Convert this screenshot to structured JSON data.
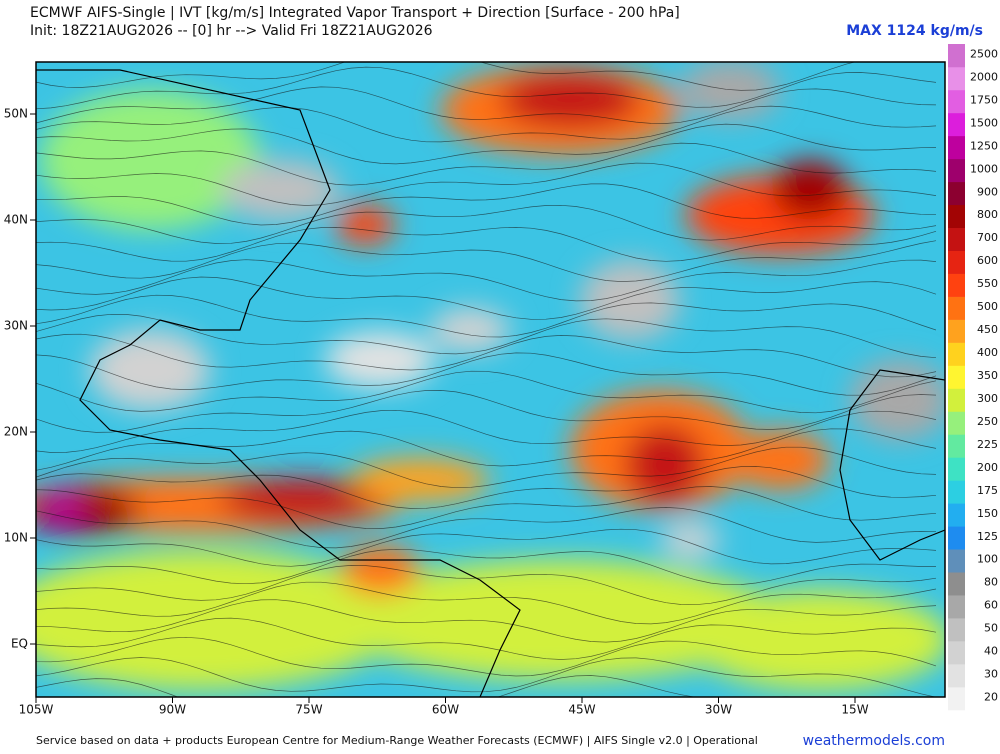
{
  "header": {
    "title": "ECMWF AIFS-Single | IVT [kg/m/s] Integrated Vapor Transport + Direction [Surface - 200 hPa]",
    "subtitle": "Init: 18Z21AUG2026 -- [0] hr --> Valid Fri 18Z21AUG2026",
    "max_label": "MAX 1124 kg/m/s"
  },
  "map": {
    "lat_labels": [
      "50N",
      "40N",
      "30N",
      "20N",
      "10N",
      "EQ"
    ],
    "lon_labels": [
      "105W",
      "90W",
      "75W",
      "60W",
      "45W",
      "30W",
      "15W"
    ]
  },
  "colorbar": {
    "levels": [
      20,
      30,
      40,
      50,
      60,
      80,
      100,
      125,
      150,
      175,
      200,
      225,
      250,
      300,
      350,
      400,
      450,
      500,
      550,
      600,
      700,
      800,
      900,
      1000,
      1250,
      1500,
      1750,
      2000,
      2500
    ],
    "colors": [
      "#f2f2f2",
      "#e2e2e2",
      "#d2d2d2",
      "#c0c0c0",
      "#a8a8a8",
      "#8e8e8e",
      "#5f8fba",
      "#1e8cf0",
      "#22aef0",
      "#2ccfe2",
      "#3ee2c4",
      "#62eaa0",
      "#96f07c",
      "#d2f03c",
      "#fff530",
      "#ffd21e",
      "#ffa21e",
      "#ff7212",
      "#ff4210",
      "#e62412",
      "#c41212",
      "#a20404",
      "#8c0030",
      "#9e006c",
      "#be009e",
      "#dc1edc",
      "#e25ee2",
      "#e890e8",
      "#d070d0"
    ]
  },
  "footer": {
    "credit": "Service based on data + products European Centre for Medium-Range Weather Forecasts (ECMWF) | AIFS Single v2.0 | Operational",
    "site": "weathermodels.com"
  }
}
